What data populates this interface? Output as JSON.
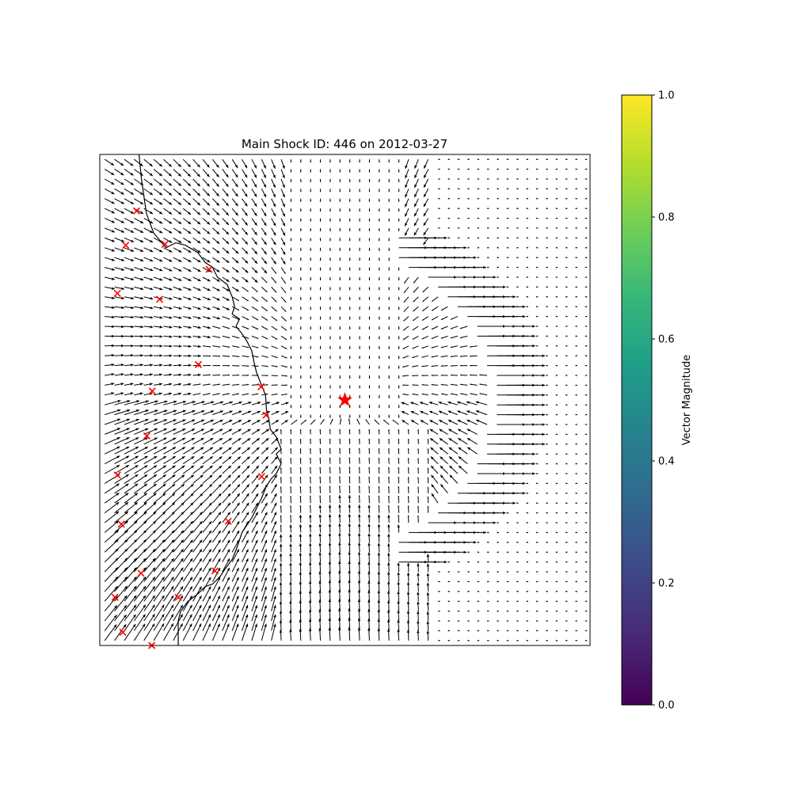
{
  "chart_data": {
    "type": "quiver",
    "title": "Main Shock ID: 446 on 2012-03-27",
    "grid": false,
    "axes": {
      "x_ticks": [],
      "y_ticks": []
    },
    "field": {
      "rows": 50,
      "cols": 50,
      "x_range": [
        0,
        1
      ],
      "y_range": [
        0,
        1
      ],
      "vector_color": "#000000",
      "description_in_data_units": "displacement vectors radiating from main shock; large eastward arrows on a ring to the east"
    },
    "main_shock": {
      "x": 0.5,
      "y": 0.5,
      "marker": "star",
      "color": "#ff0000"
    },
    "aftershocks": {
      "marker": "x",
      "color": "#ff0000",
      "points": [
        {
          "x": 0.075,
          "y": 0.885
        },
        {
          "x": 0.053,
          "y": 0.815
        },
        {
          "x": 0.133,
          "y": 0.817
        },
        {
          "x": 0.223,
          "y": 0.766
        },
        {
          "x": 0.036,
          "y": 0.717
        },
        {
          "x": 0.122,
          "y": 0.705
        },
        {
          "x": 0.201,
          "y": 0.572
        },
        {
          "x": 0.329,
          "y": 0.527
        },
        {
          "x": 0.107,
          "y": 0.518
        },
        {
          "x": 0.339,
          "y": 0.469
        },
        {
          "x": 0.096,
          "y": 0.427
        },
        {
          "x": 0.036,
          "y": 0.347
        },
        {
          "x": 0.33,
          "y": 0.344
        },
        {
          "x": 0.044,
          "y": 0.247
        },
        {
          "x": 0.262,
          "y": 0.253
        },
        {
          "x": 0.084,
          "y": 0.147
        },
        {
          "x": 0.235,
          "y": 0.152
        },
        {
          "x": 0.031,
          "y": 0.098
        },
        {
          "x": 0.16,
          "y": 0.098
        },
        {
          "x": 0.047,
          "y": 0.027
        },
        {
          "x": 0.106,
          "y": 0.0
        }
      ]
    },
    "coastline": {
      "color": "#000000",
      "points": [
        [
          0.08,
          1.0
        ],
        [
          0.085,
          0.95
        ],
        [
          0.095,
          0.88
        ],
        [
          0.11,
          0.84
        ],
        [
          0.135,
          0.81
        ],
        [
          0.155,
          0.82
        ],
        [
          0.175,
          0.815
        ],
        [
          0.2,
          0.8
        ],
        [
          0.215,
          0.78
        ],
        [
          0.23,
          0.77
        ],
        [
          0.24,
          0.75
        ],
        [
          0.26,
          0.735
        ],
        [
          0.27,
          0.71
        ],
        [
          0.275,
          0.69
        ],
        [
          0.27,
          0.675
        ],
        [
          0.285,
          0.665
        ],
        [
          0.278,
          0.65
        ],
        [
          0.29,
          0.635
        ],
        [
          0.3,
          0.62
        ],
        [
          0.31,
          0.6
        ],
        [
          0.315,
          0.575
        ],
        [
          0.32,
          0.555
        ],
        [
          0.33,
          0.53
        ],
        [
          0.338,
          0.51
        ],
        [
          0.34,
          0.48
        ],
        [
          0.345,
          0.46
        ],
        [
          0.348,
          0.44
        ],
        [
          0.36,
          0.425
        ],
        [
          0.37,
          0.4
        ],
        [
          0.36,
          0.39
        ],
        [
          0.37,
          0.37
        ],
        [
          0.36,
          0.35
        ],
        [
          0.35,
          0.34
        ],
        [
          0.34,
          0.325
        ],
        [
          0.33,
          0.3
        ],
        [
          0.32,
          0.28
        ],
        [
          0.31,
          0.26
        ],
        [
          0.3,
          0.245
        ],
        [
          0.29,
          0.23
        ],
        [
          0.28,
          0.2
        ],
        [
          0.27,
          0.175
        ],
        [
          0.255,
          0.155
        ],
        [
          0.245,
          0.14
        ],
        [
          0.23,
          0.125
        ],
        [
          0.215,
          0.12
        ],
        [
          0.2,
          0.105
        ],
        [
          0.18,
          0.09
        ],
        [
          0.165,
          0.07
        ],
        [
          0.16,
          0.05
        ],
        [
          0.16,
          0.02
        ],
        [
          0.16,
          0.0
        ]
      ]
    },
    "colorbar": {
      "label": "Vector Magnitude",
      "min": 0.0,
      "max": 1.0,
      "ticks": [
        "0.0",
        "0.2",
        "0.4",
        "0.6",
        "0.8",
        "1.0"
      ],
      "tick_values": [
        0.0,
        0.2,
        0.4,
        0.6,
        0.8,
        1.0
      ],
      "colormap": "viridis",
      "colormap_stops": [
        "#440154",
        "#482878",
        "#3e4989",
        "#31688e",
        "#26828e",
        "#1f9e89",
        "#35b779",
        "#6ece58",
        "#b5de2b",
        "#fde725"
      ]
    }
  }
}
